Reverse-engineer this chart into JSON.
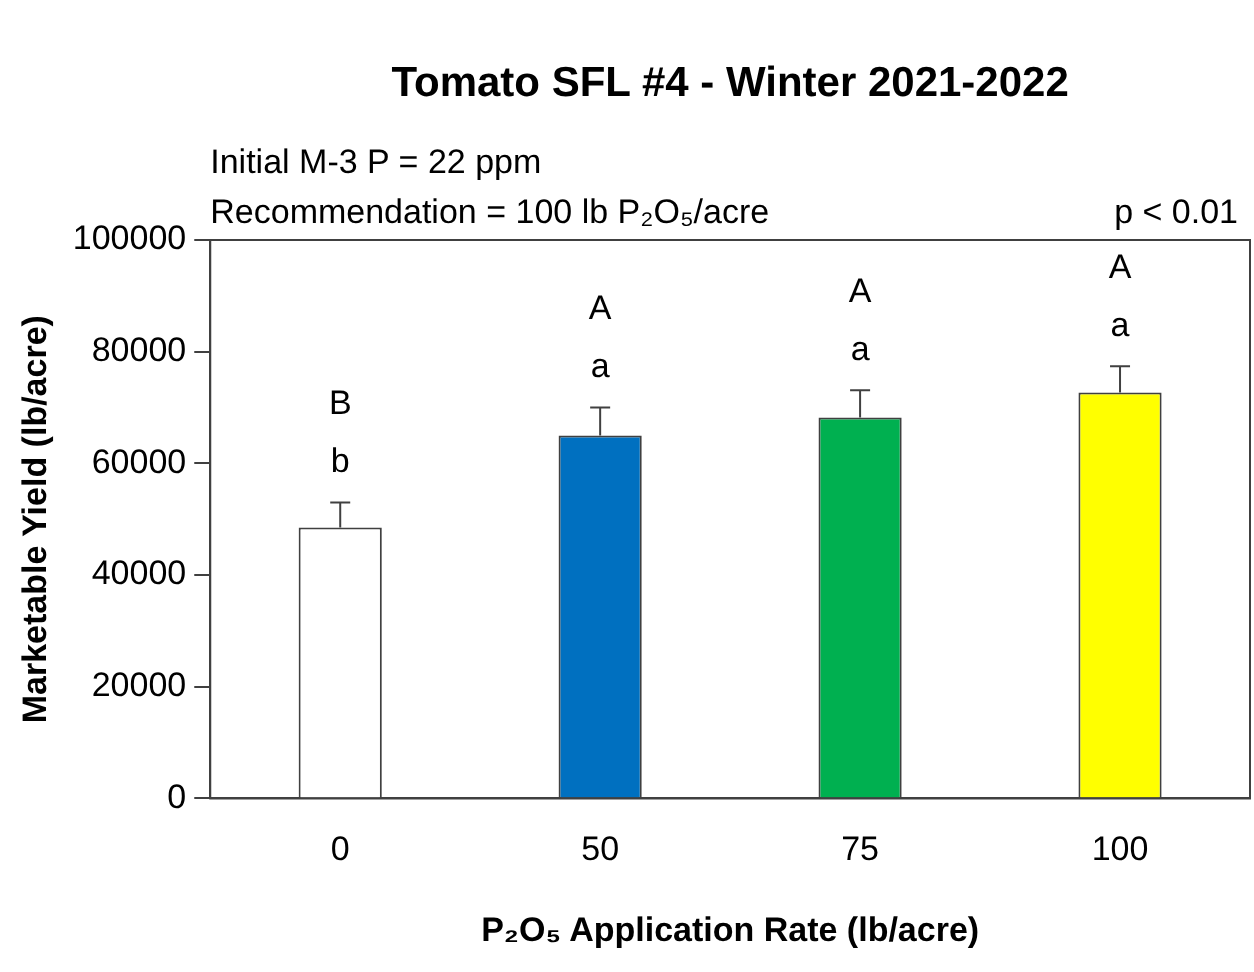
{
  "chart_data": {
    "type": "bar",
    "title": "Tomato SFL #4 - Winter 2021-2022",
    "xlabel": "P₂O₅ Application Rate (lb/acre)",
    "ylabel": "Marketable Yield (lb/acre)",
    "categories": [
      "0",
      "50",
      "75",
      "100"
    ],
    "values": [
      48500,
      65000,
      68200,
      72700
    ],
    "colors": [
      "#ffffff",
      "#0070c0",
      "#00b050",
      "#ffff00"
    ],
    "errors": [
      [
        48500,
        53000
      ],
      [
        65000,
        70000
      ],
      [
        68200,
        73100
      ],
      [
        72700,
        77400
      ]
    ],
    "ylim": [
      0,
      100000
    ],
    "yticks": [
      0,
      20000,
      40000,
      60000,
      80000,
      100000
    ],
    "grid": false,
    "legend": false,
    "annotations": [
      "Initial M-3 P = 22 ppm",
      "Recommendation = 100 lb P₂O₅/acre",
      "p < 0.01",
      "B",
      "b",
      "A",
      "a",
      "A",
      "a",
      "A",
      "a"
    ]
  }
}
